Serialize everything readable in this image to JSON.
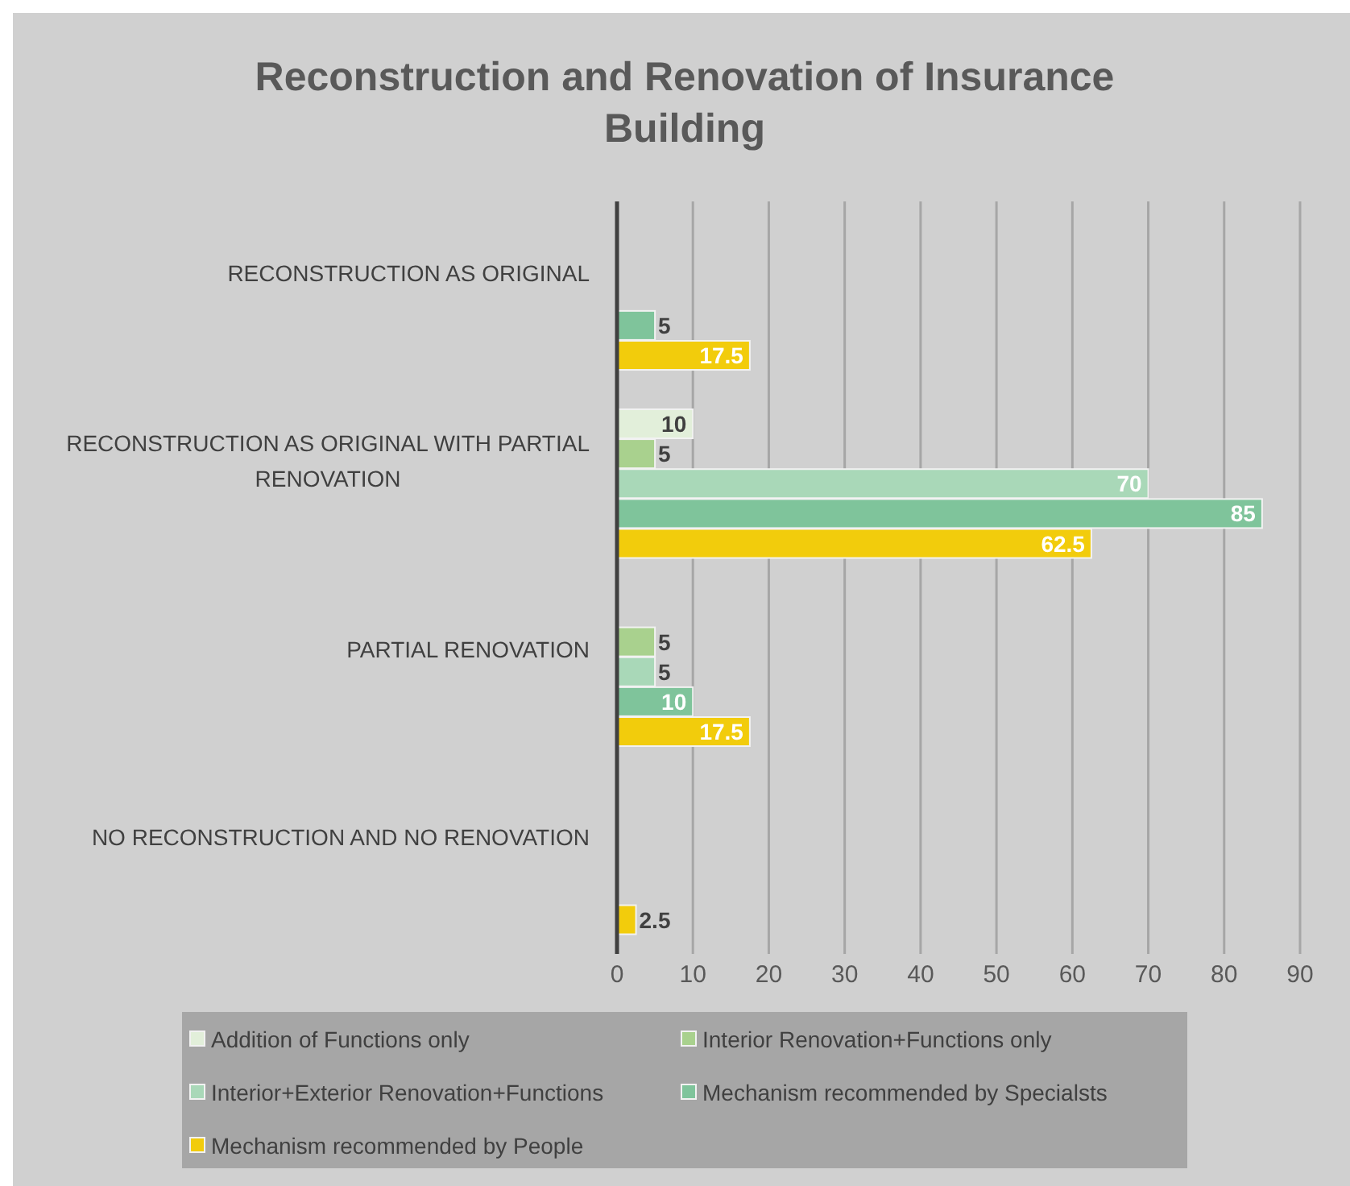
{
  "chart_data": {
    "type": "bar",
    "orientation": "horizontal",
    "title": "Reconstruction and Renovation of Insurance Building",
    "categories": [
      "RECONSTRUCTION AS ORIGINAL",
      "RECONSTRUCTION AS ORIGINAL WITH PARTIAL RENOVATION",
      "PARTIAL RENOVATION",
      "NO RECONSTRUCTION AND NO RENOVATION"
    ],
    "series": [
      {
        "name": "Addition of Functions only",
        "color": "#e2efda",
        "values": [
          null,
          10,
          null,
          null
        ]
      },
      {
        "name": "Interior Renovation+Functions only",
        "color": "#a9d18e",
        "values": [
          null,
          5,
          5,
          null
        ]
      },
      {
        "name": "Interior+Exterior Renovation+Functions",
        "color": "#a9d8b8",
        "values": [
          null,
          70,
          5,
          null
        ]
      },
      {
        "name": "Mechanism recommended by Specialsts",
        "color": "#7fc49b",
        "values": [
          5,
          85,
          10,
          null
        ]
      },
      {
        "name": "Mechanism recommended by People",
        "color": "#f2cc0c",
        "values": [
          17.5,
          62.5,
          17.5,
          2.5
        ]
      }
    ],
    "xlim": [
      0,
      90
    ],
    "xticks": [
      0,
      10,
      20,
      30,
      40,
      50,
      60,
      70,
      80,
      90
    ],
    "grid": "x",
    "data_labels": true,
    "legend": "bottom"
  }
}
